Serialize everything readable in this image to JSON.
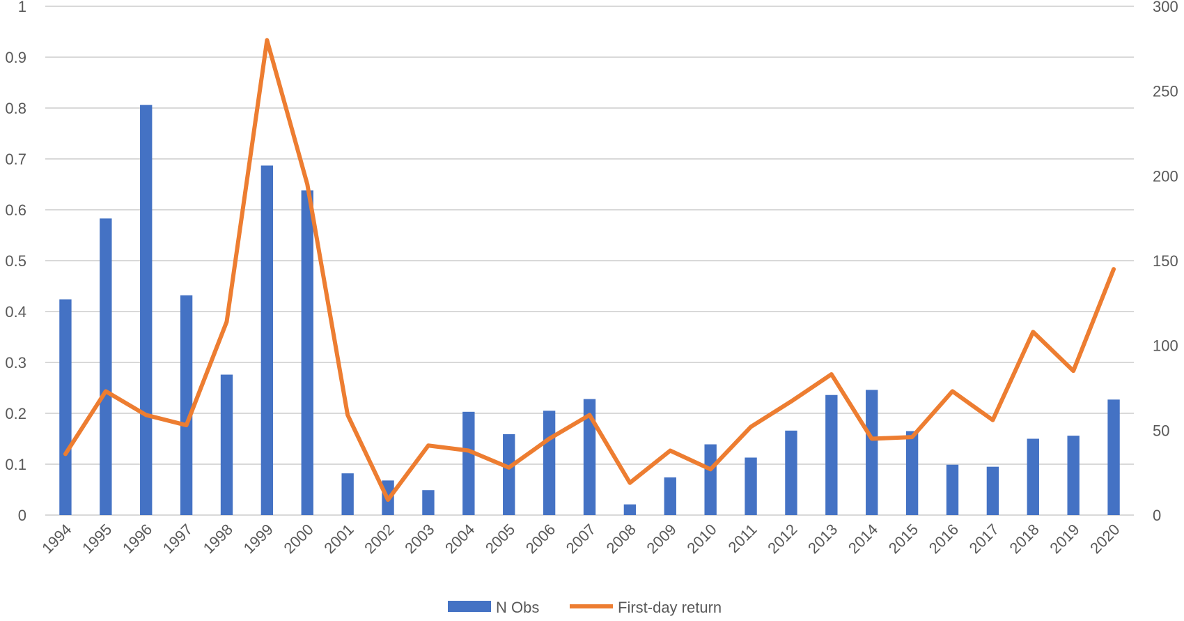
{
  "chart_data": {
    "type": "bar+line",
    "title": "",
    "categories": [
      "1994",
      "1995",
      "1996",
      "1997",
      "1998",
      "1999",
      "2000",
      "2001",
      "2002",
      "2003",
      "2004",
      "2005",
      "2006",
      "2007",
      "2008",
      "2009",
      "2010",
      "2011",
      "2012",
      "2013",
      "2014",
      "2015",
      "2016",
      "2017",
      "2018",
      "2019",
      "2020"
    ],
    "series": [
      {
        "name": "N Obs",
        "type": "bar",
        "axis": "left",
        "color": "#4472C4",
        "values": [
          0.424,
          0.583,
          0.806,
          0.432,
          0.276,
          0.687,
          0.638,
          0.082,
          0.068,
          0.049,
          0.203,
          0.159,
          0.205,
          0.228,
          0.021,
          0.074,
          0.139,
          0.113,
          0.166,
          0.236,
          0.246,
          0.165,
          0.099,
          0.095,
          0.15,
          0.156,
          0.227
        ]
      },
      {
        "name": "First-day return",
        "type": "line",
        "axis": "right",
        "color": "#ED7D31",
        "values": [
          36,
          73,
          59,
          53,
          114,
          280,
          195,
          59,
          9,
          41,
          38,
          28,
          45,
          59,
          19,
          38,
          27,
          52,
          67,
          83,
          45,
          46,
          73,
          56,
          108,
          85,
          145
        ]
      }
    ],
    "left_axis": {
      "ylim": [
        0,
        1
      ],
      "ticks": [
        "0",
        "0.1",
        "0.2",
        "0.3",
        "0.4",
        "0.5",
        "0.6",
        "0.7",
        "0.8",
        "0.9",
        "1"
      ]
    },
    "right_axis": {
      "ylim": [
        0,
        300
      ],
      "ticks": [
        "0",
        "50",
        "100",
        "150",
        "200",
        "250",
        "300"
      ]
    },
    "grid": true,
    "legend": {
      "position": "bottom",
      "entries": [
        "N Obs",
        "First-day return"
      ]
    }
  }
}
